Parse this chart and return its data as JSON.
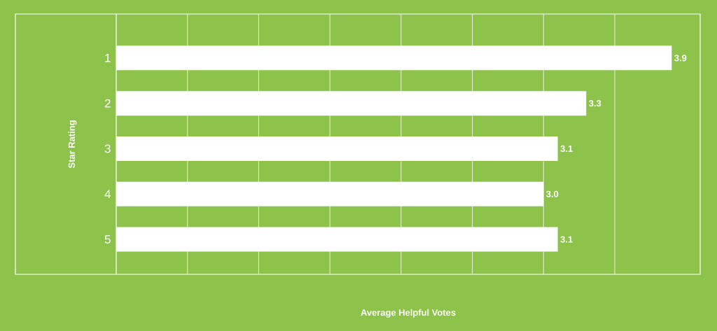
{
  "chart_data": {
    "type": "bar",
    "orientation": "horizontal",
    "xlabel": "Average Helpful Votes",
    "ylabel": "Star Rating",
    "categories": [
      "1",
      "2",
      "3",
      "4",
      "5"
    ],
    "values": [
      3.9,
      3.3,
      3.1,
      3.0,
      3.1
    ],
    "value_labels": [
      "3.9",
      "3.3",
      "3.1",
      "3.0",
      "3.1"
    ],
    "color": "#ffffff",
    "xlim": [
      0,
      4.1
    ],
    "xticks": [
      {
        "value": 0.5,
        "label": null
      },
      {
        "value": 1,
        "label": null
      },
      {
        "value": 1.5,
        "label": null
      },
      {
        "value": 2,
        "label": null
      },
      {
        "value": 2.5,
        "label": null
      },
      {
        "value": 3,
        "label": null
      },
      {
        "value": 3.5,
        "label": null
      }
    ],
    "tick_labels": "y",
    "grid": "x"
  }
}
